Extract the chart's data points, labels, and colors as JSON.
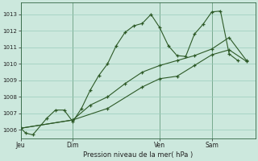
{
  "xlabel": "Pression niveau de la mer( hPa )",
  "bg_color": "#cce8dd",
  "grid_color": "#99ccbb",
  "line_color": "#2d5a27",
  "ylim": [
    1005.5,
    1013.7
  ],
  "yticks": [
    1006,
    1007,
    1008,
    1009,
    1010,
    1011,
    1012,
    1013
  ],
  "xtick_labels": [
    "Jeu",
    "Dim",
    "Ven",
    "Sam"
  ],
  "xtick_positions": [
    0,
    3,
    8,
    11
  ],
  "vlines": [
    0,
    3,
    8,
    11
  ],
  "xlim": [
    0,
    13.5
  ],
  "series1_x": [
    0,
    0.3,
    0.7,
    1.5,
    2.0,
    2.5,
    3.0,
    3.5,
    4.0,
    4.5,
    5.0,
    5.5,
    6.0,
    6.5,
    7.0,
    7.5,
    8.0,
    8.5,
    9.0,
    9.5,
    10.0,
    10.5,
    11.0,
    11.5,
    12.0,
    12.5
  ],
  "series1_y": [
    1006.1,
    1005.8,
    1005.7,
    1006.7,
    1007.2,
    1007.2,
    1006.5,
    1007.3,
    1008.4,
    1009.3,
    1010.0,
    1011.1,
    1011.9,
    1012.3,
    1012.45,
    1013.0,
    1012.2,
    1011.1,
    1010.5,
    1010.45,
    1011.8,
    1012.4,
    1013.15,
    1013.2,
    1010.6,
    1010.2
  ],
  "series2_x": [
    0,
    3.0,
    5.0,
    7.0,
    8.0,
    9.0,
    10.0,
    11.0,
    12.0,
    13.0
  ],
  "series2_y": [
    1006.1,
    1006.6,
    1007.3,
    1008.6,
    1009.1,
    1009.25,
    1009.9,
    1010.55,
    1010.85,
    1010.15
  ],
  "series3_x": [
    0,
    3.0,
    4.0,
    5.0,
    6.0,
    7.0,
    8.0,
    9.0,
    10.0,
    11.0,
    12.0,
    13.0
  ],
  "series3_y": [
    1006.1,
    1006.6,
    1007.5,
    1008.0,
    1008.8,
    1009.5,
    1009.9,
    1010.2,
    1010.5,
    1010.9,
    1011.6,
    1010.2
  ]
}
